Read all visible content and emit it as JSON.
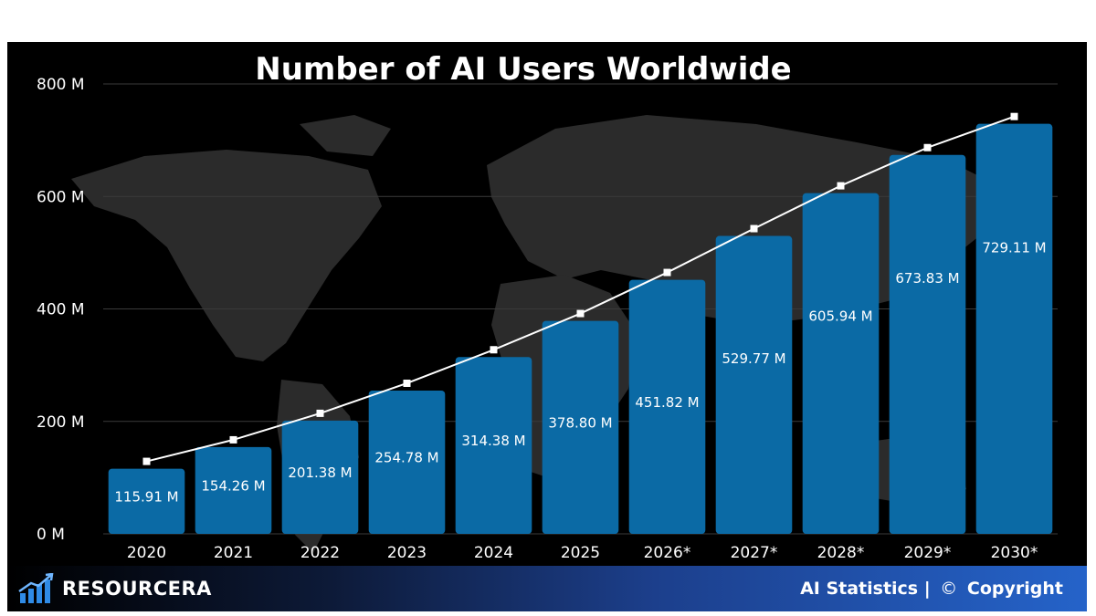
{
  "chart_data": {
    "type": "bar",
    "title": "Number of AI Users Worldwide",
    "categories": [
      "2020",
      "2021",
      "2022",
      "2023",
      "2024",
      "2025",
      "2026*",
      "2027*",
      "2028*",
      "2029*",
      "2030*"
    ],
    "values": [
      115.91,
      154.26,
      201.38,
      254.78,
      314.38,
      378.8,
      451.82,
      529.77,
      605.94,
      673.83,
      729.11
    ],
    "value_labels": [
      "115.91 M",
      "154.26 M",
      "201.38 M",
      "254.78 M",
      "314.38 M",
      "378.80 M",
      "451.82 M",
      "529.77 M",
      "605.94 M",
      "673.83 M",
      "729.11 M"
    ],
    "trend_line": true,
    "yticks": [
      0,
      200,
      400,
      600,
      800
    ],
    "ytick_labels": [
      "0 M",
      "200 M",
      "400 M",
      "600 M",
      "800 M"
    ],
    "ylim": [
      0,
      800
    ],
    "xlabel": "",
    "ylabel": "",
    "grid": true,
    "bar_color": "#0b6aa5",
    "line_color": "#ffffff",
    "background": "#000000"
  },
  "footer": {
    "brand": "RESOURCERA",
    "left_text": "AI Statistics |",
    "copyright_symbol": "©",
    "right_text": "Copyright"
  },
  "icons": {
    "brand": "bar-chart-growth-icon",
    "copyright": "copyright-icon"
  }
}
